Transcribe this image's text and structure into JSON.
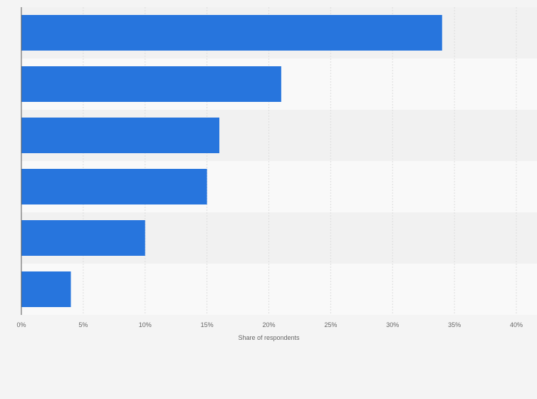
{
  "chart_data": {
    "type": "bar",
    "orientation": "horizontal",
    "categories": [
      "",
      "",
      "",
      "",
      "",
      ""
    ],
    "values": [
      34,
      21,
      16,
      15,
      10,
      4
    ],
    "xlabel": "Share of respondents",
    "ylabel": "",
    "xlim": [
      0,
      40
    ],
    "x_ticks": [
      "0%",
      "5%",
      "10%",
      "15%",
      "20%",
      "25%",
      "30%",
      "35%",
      "40%"
    ],
    "grid": true,
    "legend": "none",
    "colors": {
      "bar": "#2775dd",
      "band_dark": "#f1f1f1",
      "band_light": "#f9f9f9",
      "gridline": "#dddddd",
      "axis": "#555555",
      "text": "#666666"
    }
  }
}
